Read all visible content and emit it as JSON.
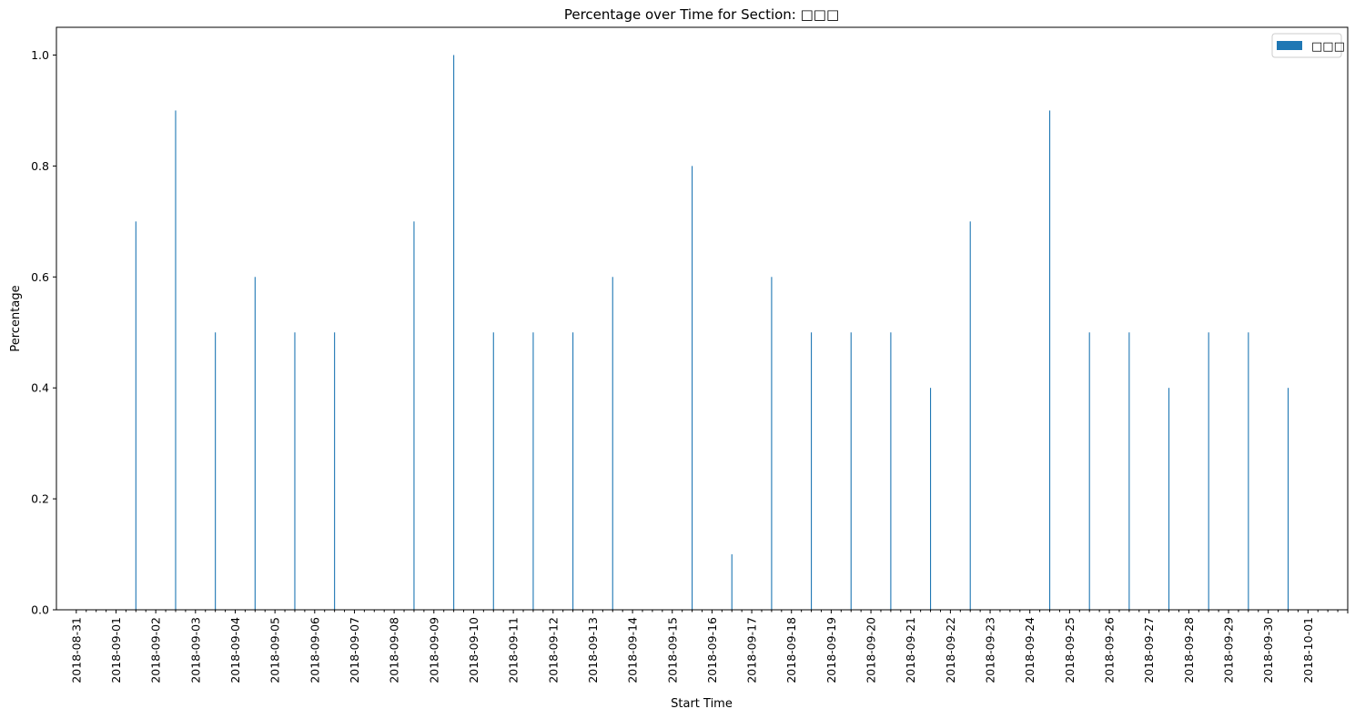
{
  "chart_data": {
    "type": "bar",
    "title": "Percentage over Time for Section: □□□",
    "xlabel": "Start Time",
    "ylabel": "Percentage",
    "ylim": [
      0,
      1.05
    ],
    "yticks": [
      "0.0",
      "0.2",
      "0.4",
      "0.6",
      "0.8",
      "1.0"
    ],
    "grid": false,
    "legend": {
      "placement": "top-right",
      "entries": [
        "□□□"
      ]
    },
    "colors": {
      "bar": "#1f77b4"
    },
    "x_tick_labels": [
      "2018-08-31",
      "2018-09-01",
      "2018-09-02",
      "2018-09-03",
      "2018-09-04",
      "2018-09-05",
      "2018-09-06",
      "2018-09-07",
      "2018-09-08",
      "2018-09-09",
      "2018-09-10",
      "2018-09-11",
      "2018-09-12",
      "2018-09-13",
      "2018-09-14",
      "2018-09-15",
      "2018-09-16",
      "2018-09-17",
      "2018-09-18",
      "2018-09-19",
      "2018-09-20",
      "2018-09-21",
      "2018-09-22",
      "2018-09-23",
      "2018-09-24",
      "2018-09-25",
      "2018-09-26",
      "2018-09-27",
      "2018-09-28",
      "2018-09-29",
      "2018-09-30",
      "2018-10-01"
    ],
    "series": [
      {
        "name": "□□□",
        "points": [
          {
            "x": "2018-09-01 12:00",
            "y": 0.7
          },
          {
            "x": "2018-09-02 12:00",
            "y": 0.9
          },
          {
            "x": "2018-09-03 12:00",
            "y": 0.5
          },
          {
            "x": "2018-09-04 12:00",
            "y": 0.6
          },
          {
            "x": "2018-09-05 12:00",
            "y": 0.5
          },
          {
            "x": "2018-09-06 12:00",
            "y": 0.5
          },
          {
            "x": "2018-09-08 12:00",
            "y": 0.7
          },
          {
            "x": "2018-09-09 12:00",
            "y": 1.0
          },
          {
            "x": "2018-09-10 12:00",
            "y": 0.5
          },
          {
            "x": "2018-09-11 12:00",
            "y": 0.5
          },
          {
            "x": "2018-09-12 12:00",
            "y": 0.5
          },
          {
            "x": "2018-09-13 12:00",
            "y": 0.6
          },
          {
            "x": "2018-09-15 12:00",
            "y": 0.8
          },
          {
            "x": "2018-09-16 12:00",
            "y": 0.1
          },
          {
            "x": "2018-09-17 12:00",
            "y": 0.6
          },
          {
            "x": "2018-09-18 12:00",
            "y": 0.5
          },
          {
            "x": "2018-09-19 12:00",
            "y": 0.5
          },
          {
            "x": "2018-09-20 12:00",
            "y": 0.5
          },
          {
            "x": "2018-09-21 12:00",
            "y": 0.4
          },
          {
            "x": "2018-09-22 12:00",
            "y": 0.7
          },
          {
            "x": "2018-09-24 12:00",
            "y": 0.9
          },
          {
            "x": "2018-09-25 12:00",
            "y": 0.5
          },
          {
            "x": "2018-09-26 12:00",
            "y": 0.5
          },
          {
            "x": "2018-09-27 12:00",
            "y": 0.4
          },
          {
            "x": "2018-09-28 12:00",
            "y": 0.5
          },
          {
            "x": "2018-09-29 12:00",
            "y": 0.5
          },
          {
            "x": "2018-09-30 12:00",
            "y": 0.4
          }
        ]
      }
    ]
  }
}
